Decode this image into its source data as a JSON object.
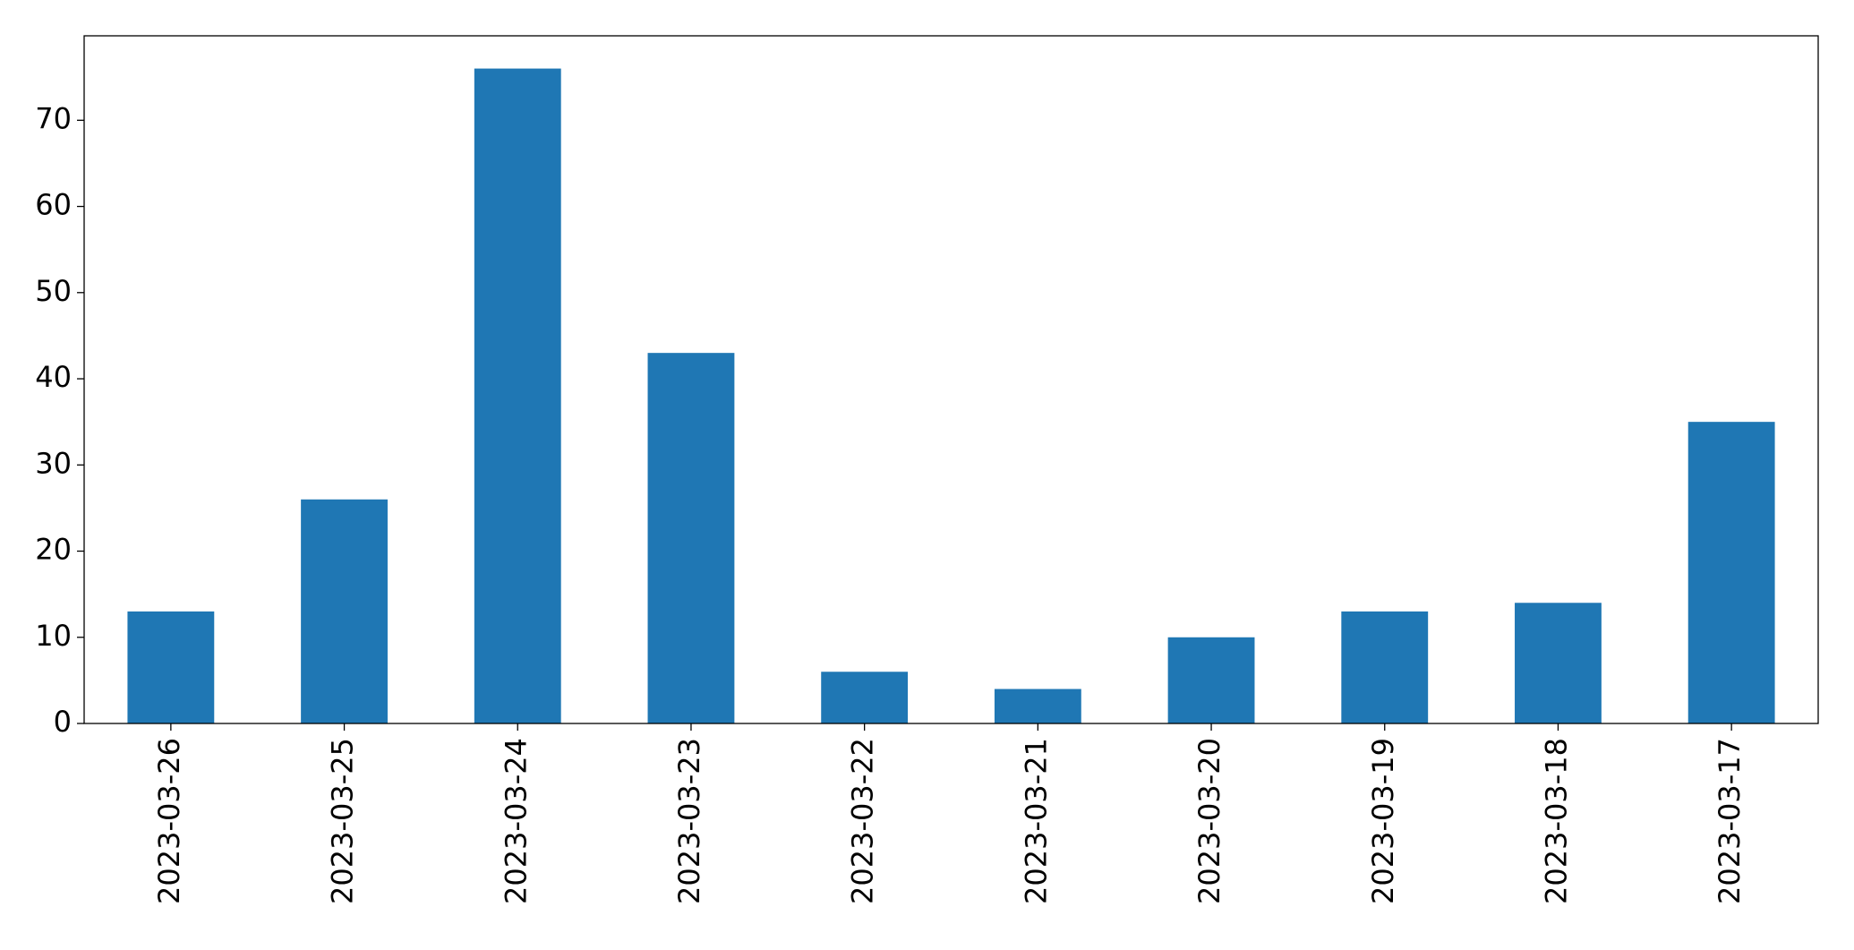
{
  "chart_data": {
    "type": "bar",
    "categories": [
      "2023-03-26",
      "2023-03-25",
      "2023-03-24",
      "2023-03-23",
      "2023-03-22",
      "2023-03-21",
      "2023-03-20",
      "2023-03-19",
      "2023-03-18",
      "2023-03-17"
    ],
    "values": [
      13,
      26,
      76,
      43,
      6,
      4,
      10,
      13,
      14,
      35
    ],
    "color": "#1f77b4",
    "ylim": [
      0,
      79.8
    ],
    "yticks": [
      0,
      10,
      20,
      30,
      40,
      50,
      60,
      70
    ],
    "grid": false
  }
}
